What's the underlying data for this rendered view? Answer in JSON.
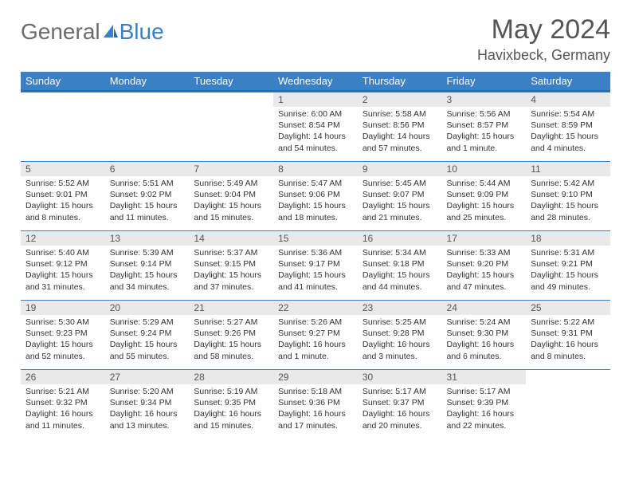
{
  "logo": {
    "text1": "General",
    "text2": "Blue"
  },
  "title": "May 2024",
  "location": "Havixbeck, Germany",
  "colors": {
    "headerBg": "#3b7fc4",
    "headerText": "#ffffff",
    "dayNumBg": "#e9e9e9",
    "bodyText": "#333333"
  },
  "dayNames": [
    "Sunday",
    "Monday",
    "Tuesday",
    "Wednesday",
    "Thursday",
    "Friday",
    "Saturday"
  ],
  "weeks": [
    [
      null,
      null,
      null,
      {
        "n": "1",
        "sr": "6:00 AM",
        "ss": "8:54 PM",
        "dl": "14 hours and 54 minutes."
      },
      {
        "n": "2",
        "sr": "5:58 AM",
        "ss": "8:56 PM",
        "dl": "14 hours and 57 minutes."
      },
      {
        "n": "3",
        "sr": "5:56 AM",
        "ss": "8:57 PM",
        "dl": "15 hours and 1 minute."
      },
      {
        "n": "4",
        "sr": "5:54 AM",
        "ss": "8:59 PM",
        "dl": "15 hours and 4 minutes."
      }
    ],
    [
      {
        "n": "5",
        "sr": "5:52 AM",
        "ss": "9:01 PM",
        "dl": "15 hours and 8 minutes."
      },
      {
        "n": "6",
        "sr": "5:51 AM",
        "ss": "9:02 PM",
        "dl": "15 hours and 11 minutes."
      },
      {
        "n": "7",
        "sr": "5:49 AM",
        "ss": "9:04 PM",
        "dl": "15 hours and 15 minutes."
      },
      {
        "n": "8",
        "sr": "5:47 AM",
        "ss": "9:06 PM",
        "dl": "15 hours and 18 minutes."
      },
      {
        "n": "9",
        "sr": "5:45 AM",
        "ss": "9:07 PM",
        "dl": "15 hours and 21 minutes."
      },
      {
        "n": "10",
        "sr": "5:44 AM",
        "ss": "9:09 PM",
        "dl": "15 hours and 25 minutes."
      },
      {
        "n": "11",
        "sr": "5:42 AM",
        "ss": "9:10 PM",
        "dl": "15 hours and 28 minutes."
      }
    ],
    [
      {
        "n": "12",
        "sr": "5:40 AM",
        "ss": "9:12 PM",
        "dl": "15 hours and 31 minutes."
      },
      {
        "n": "13",
        "sr": "5:39 AM",
        "ss": "9:14 PM",
        "dl": "15 hours and 34 minutes."
      },
      {
        "n": "14",
        "sr": "5:37 AM",
        "ss": "9:15 PM",
        "dl": "15 hours and 37 minutes."
      },
      {
        "n": "15",
        "sr": "5:36 AM",
        "ss": "9:17 PM",
        "dl": "15 hours and 41 minutes."
      },
      {
        "n": "16",
        "sr": "5:34 AM",
        "ss": "9:18 PM",
        "dl": "15 hours and 44 minutes."
      },
      {
        "n": "17",
        "sr": "5:33 AM",
        "ss": "9:20 PM",
        "dl": "15 hours and 47 minutes."
      },
      {
        "n": "18",
        "sr": "5:31 AM",
        "ss": "9:21 PM",
        "dl": "15 hours and 49 minutes."
      }
    ],
    [
      {
        "n": "19",
        "sr": "5:30 AM",
        "ss": "9:23 PM",
        "dl": "15 hours and 52 minutes."
      },
      {
        "n": "20",
        "sr": "5:29 AM",
        "ss": "9:24 PM",
        "dl": "15 hours and 55 minutes."
      },
      {
        "n": "21",
        "sr": "5:27 AM",
        "ss": "9:26 PM",
        "dl": "15 hours and 58 minutes."
      },
      {
        "n": "22",
        "sr": "5:26 AM",
        "ss": "9:27 PM",
        "dl": "16 hours and 1 minute."
      },
      {
        "n": "23",
        "sr": "5:25 AM",
        "ss": "9:28 PM",
        "dl": "16 hours and 3 minutes."
      },
      {
        "n": "24",
        "sr": "5:24 AM",
        "ss": "9:30 PM",
        "dl": "16 hours and 6 minutes."
      },
      {
        "n": "25",
        "sr": "5:22 AM",
        "ss": "9:31 PM",
        "dl": "16 hours and 8 minutes."
      }
    ],
    [
      {
        "n": "26",
        "sr": "5:21 AM",
        "ss": "9:32 PM",
        "dl": "16 hours and 11 minutes."
      },
      {
        "n": "27",
        "sr": "5:20 AM",
        "ss": "9:34 PM",
        "dl": "16 hours and 13 minutes."
      },
      {
        "n": "28",
        "sr": "5:19 AM",
        "ss": "9:35 PM",
        "dl": "16 hours and 15 minutes."
      },
      {
        "n": "29",
        "sr": "5:18 AM",
        "ss": "9:36 PM",
        "dl": "16 hours and 17 minutes."
      },
      {
        "n": "30",
        "sr": "5:17 AM",
        "ss": "9:37 PM",
        "dl": "16 hours and 20 minutes."
      },
      {
        "n": "31",
        "sr": "5:17 AM",
        "ss": "9:39 PM",
        "dl": "16 hours and 22 minutes."
      },
      null
    ]
  ],
  "labels": {
    "sunrise": "Sunrise: ",
    "sunset": "Sunset: ",
    "daylight": "Daylight: "
  }
}
